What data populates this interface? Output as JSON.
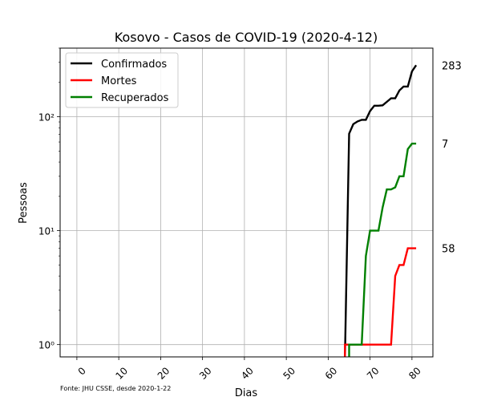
{
  "chart_data": {
    "type": "line",
    "title": "Kosovo - Casos de COVID-19 (2020-4-12)",
    "xlabel": "Dias",
    "ylabel": "Pessoas",
    "yscale": "log",
    "xlim": [
      -4,
      85
    ],
    "ylim": [
      0.78,
      400
    ],
    "xticks": [
      0,
      10,
      20,
      30,
      40,
      50,
      60,
      70,
      80
    ],
    "xtick_labels": [
      "0",
      "10",
      "20",
      "30",
      "40",
      "50",
      "60",
      "70",
      "80"
    ],
    "yticks": [
      1,
      10,
      100
    ],
    "ytick_labels": [
      "10⁰",
      "10¹",
      "10²"
    ],
    "grid": true,
    "legend_position": "top-left",
    "footnote": "Fonte: JHU CSSE, desde 2020-1-22",
    "end_labels": [
      "283",
      "58",
      "7"
    ],
    "series": [
      {
        "name": "Confirmados",
        "color": "#000000",
        "x": [
          64,
          65,
          66,
          67,
          68,
          69,
          70,
          71,
          72,
          73,
          74,
          75,
          76,
          77,
          78,
          79,
          80,
          81
        ],
        "y": [
          0.78,
          71,
          86,
          91,
          94,
          94,
          112,
          125,
          125,
          126,
          135,
          145,
          145,
          170,
          184,
          184,
          250,
          283
        ]
      },
      {
        "name": "Mortes",
        "color": "#ff0000",
        "x": [
          64,
          64,
          65,
          66,
          67,
          68,
          69,
          70,
          71,
          72,
          73,
          74,
          75,
          76,
          77,
          78,
          79,
          80,
          81
        ],
        "y": [
          0.78,
          1,
          1,
          1,
          1,
          1,
          1,
          1,
          1,
          1,
          1,
          1,
          1,
          4,
          5,
          5,
          7,
          7,
          7
        ]
      },
      {
        "name": "Recuperados",
        "color": "#008000",
        "x": [
          65,
          65,
          66,
          67,
          68,
          69,
          70,
          71,
          72,
          73,
          74,
          75,
          76,
          77,
          78,
          79,
          80,
          81
        ],
        "y": [
          0.78,
          1,
          1,
          1,
          1,
          6,
          10,
          10,
          10,
          16,
          23,
          23,
          24,
          30,
          30,
          52,
          58,
          58
        ]
      }
    ]
  }
}
